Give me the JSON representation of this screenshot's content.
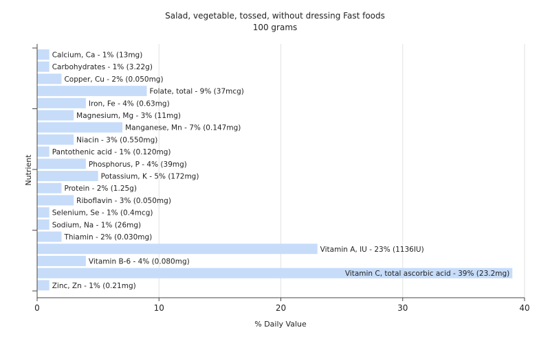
{
  "chart_data": {
    "type": "bar",
    "orientation": "horizontal",
    "title": "Salad, vegetable, tossed, without dressing Fast foods",
    "subtitle": "100 grams",
    "xlabel": "% Daily Value",
    "ylabel": "Nutrient",
    "xlim": [
      0,
      40
    ],
    "xticks": [
      0,
      10,
      20,
      30,
      40
    ],
    "grid": true,
    "bar_color": "#c6dcf9",
    "categories": [
      "Calcium, Ca",
      "Carbohydrates",
      "Copper, Cu",
      "Folate, total",
      "Iron, Fe",
      "Magnesium, Mg",
      "Manganese, Mn",
      "Niacin",
      "Pantothenic acid",
      "Phosphorus, P",
      "Potassium, K",
      "Protein",
      "Riboflavin",
      "Selenium, Se",
      "Sodium, Na",
      "Thiamin",
      "Vitamin A, IU",
      "Vitamin B-6",
      "Vitamin C, total ascorbic acid",
      "Zinc, Zn"
    ],
    "values": [
      1,
      1,
      2,
      9,
      4,
      3,
      7,
      3,
      1,
      4,
      5,
      2,
      3,
      1,
      1,
      2,
      23,
      4,
      39,
      1
    ],
    "labels": [
      "Calcium, Ca - 1% (13mg)",
      "Carbohydrates - 1% (3.22g)",
      "Copper, Cu - 2% (0.050mg)",
      "Folate, total - 9% (37mcg)",
      "Iron, Fe - 4% (0.63mg)",
      "Magnesium, Mg - 3% (11mg)",
      "Manganese, Mn - 7% (0.147mg)",
      "Niacin - 3% (0.550mg)",
      "Pantothenic acid - 1% (0.120mg)",
      "Phosphorus, P - 4% (39mg)",
      "Potassium, K - 5% (172mg)",
      "Protein - 2% (1.25g)",
      "Riboflavin - 3% (0.050mg)",
      "Selenium, Se - 1% (0.4mcg)",
      "Sodium, Na - 1% (26mg)",
      "Thiamin - 2% (0.030mg)",
      "Vitamin A, IU - 23% (1136IU)",
      "Vitamin B-6 - 4% (0.080mg)",
      "Vitamin C, total ascorbic acid - 39% (23.2mg)",
      "Zinc, Zn - 1% (0.21mg)"
    ]
  }
}
